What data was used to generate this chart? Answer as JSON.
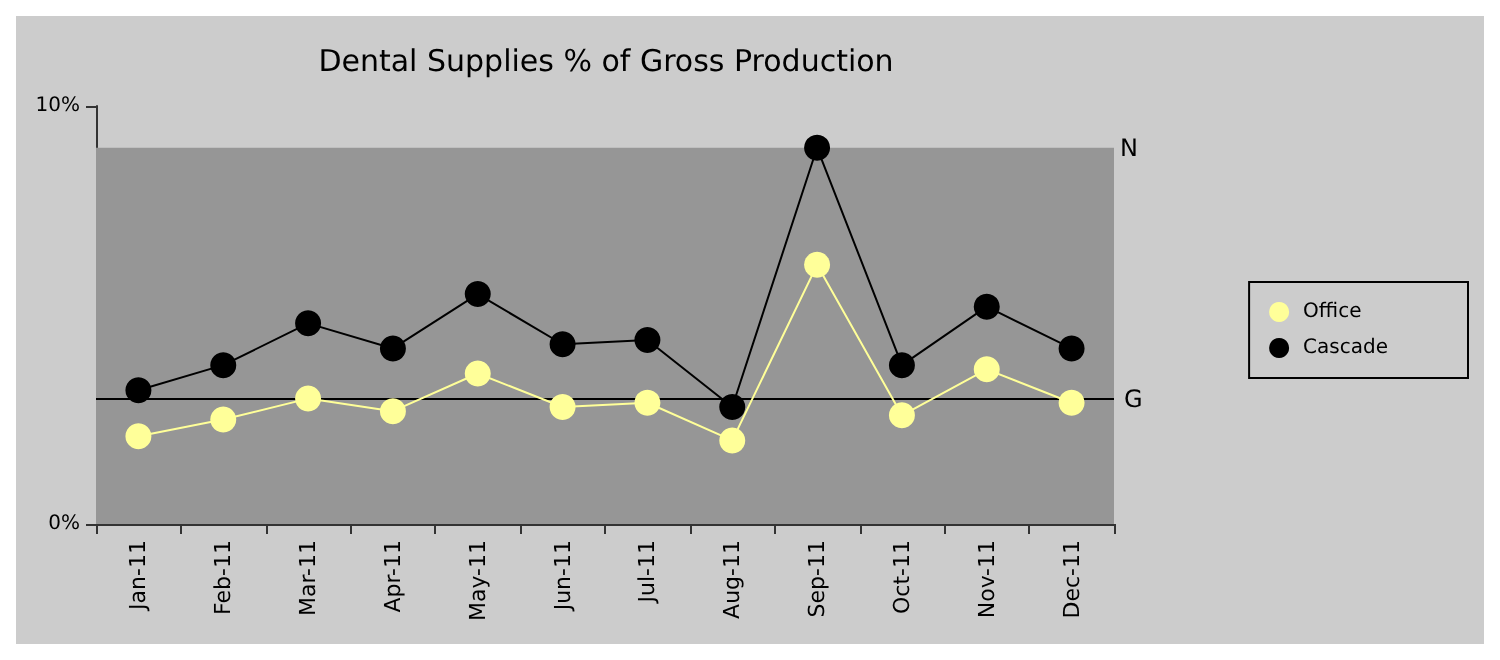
{
  "chart_data": {
    "type": "line",
    "title": "Dental Supplies % of Gross Production",
    "categories": [
      "Jan-11",
      "Feb-11",
      "Mar-11",
      "Apr-11",
      "May-11",
      "Jun-11",
      "Jul-11",
      "Aug-11",
      "Sep-11",
      "Oct-11",
      "Nov-11",
      "Dec-11"
    ],
    "series": [
      {
        "name": "Office",
        "color": "#ffff99",
        "values": [
          2.1,
          2.5,
          3.0,
          2.7,
          3.6,
          2.8,
          2.9,
          2.0,
          6.2,
          2.6,
          3.7,
          2.9
        ]
      },
      {
        "name": "Cascade",
        "color": "#000000",
        "values": [
          3.2,
          3.8,
          4.8,
          4.2,
          5.5,
          4.3,
          4.4,
          2.8,
          9.0,
          3.8,
          5.2,
          4.2
        ]
      }
    ],
    "ylim": [
      0,
      10
    ],
    "yticks": [
      {
        "value": 0,
        "label": "0%"
      },
      {
        "value": 10,
        "label": "10%"
      }
    ],
    "bands": [
      {
        "axis": "y",
        "from": 0,
        "to": 9,
        "label": "N",
        "color": "#969696"
      }
    ],
    "ref_lines": [
      {
        "axis": "y",
        "value": 3,
        "label": "G",
        "color": "#000000"
      }
    ],
    "legend": "right",
    "marker": "circle",
    "line_style": "solid"
  }
}
